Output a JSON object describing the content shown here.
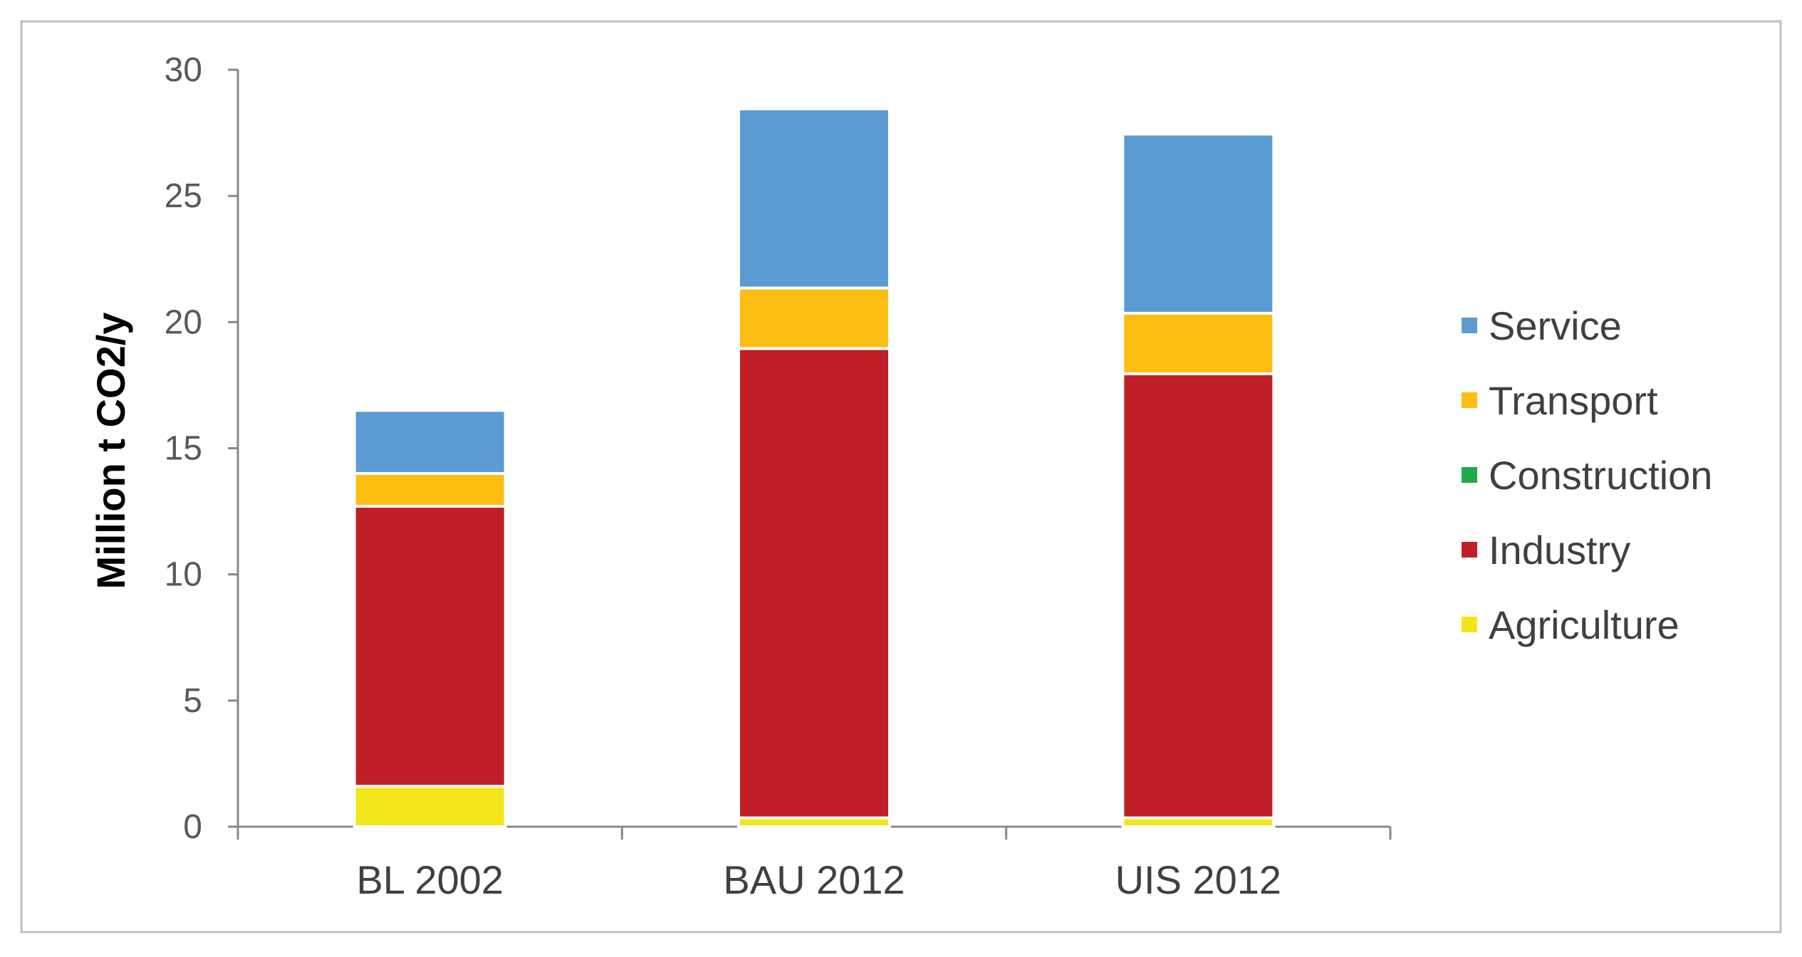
{
  "chart_data": {
    "type": "bar",
    "stacked": true,
    "categories": [
      "BL 2002",
      "BAU 2012",
      "UIS 2012"
    ],
    "series": [
      {
        "name": "Agriculture",
        "color": "#F2E61B",
        "values": [
          1.6,
          0.35,
          0.35
        ]
      },
      {
        "name": "Construction",
        "color": "#1FAA4B",
        "values": [
          0,
          0,
          0
        ]
      },
      {
        "name": "Industry",
        "color": "#C01F27",
        "values": [
          11.1,
          18.6,
          17.6
        ]
      },
      {
        "name": "Transport",
        "color": "#FDBE12",
        "values": [
          1.3,
          2.4,
          2.4
        ]
      },
      {
        "name": "Service",
        "color": "#5B9BD3",
        "values": [
          2.5,
          7.1,
          7.1
        ]
      }
    ],
    "legend_order": [
      "Service",
      "Transport",
      "Construction",
      "Industry",
      "Agriculture"
    ],
    "legend_position": "right",
    "ylabel": "Million t CO2/y",
    "xlabel": "",
    "ylim": [
      0,
      30
    ],
    "yticks": [
      "0",
      "5",
      "10",
      "15",
      "20",
      "25",
      "30"
    ],
    "grid": false
  }
}
